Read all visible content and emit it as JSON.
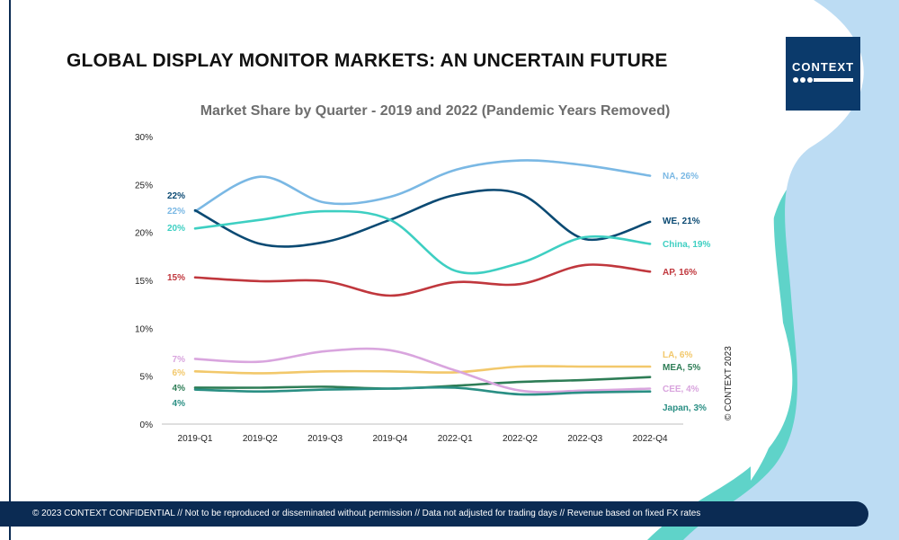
{
  "slide": {
    "title": "GLOBAL DISPLAY MONITOR MARKETS: AN UNCERTAIN FUTURE",
    "logo_text": "CONTEXT",
    "copyright_vertical": "© CONTEXT 2023",
    "footer": "© 2023 CONTEXT CONFIDENTIAL // Not to be reproduced or disseminated without permission // Data not adjusted for trading days // Revenue based on fixed FX rates"
  },
  "colors": {
    "navy": "#0b2b53",
    "light_blue_deco": "#bcdcf3",
    "teal_deco": "#5fd3c9"
  },
  "chart_data": {
    "type": "line",
    "title": "Market Share by Quarter - 2019 and 2022 (Pandemic Years Removed)",
    "xlabel": "",
    "ylabel": "",
    "categories": [
      "2019-Q1",
      "2019-Q2",
      "2019-Q3",
      "2019-Q4",
      "2022-Q1",
      "2022-Q2",
      "2022-Q3",
      "2022-Q4"
    ],
    "ylim": [
      0,
      30
    ],
    "yticks": [
      "0%",
      "5%",
      "10%",
      "15%",
      "20%",
      "25%",
      "30%"
    ],
    "grid": false,
    "series": [
      {
        "name": "NA",
        "color": "#7ab8e4",
        "values": [
          22.2,
          25.8,
          23.1,
          23.7,
          26.5,
          27.5,
          27.0,
          25.9
        ],
        "start_label": "22%",
        "end_label": "NA, 26%"
      },
      {
        "name": "WE",
        "color": "#0b4a73",
        "values": [
          22.3,
          18.8,
          19.0,
          21.3,
          23.9,
          24.0,
          19.3,
          21.1
        ],
        "start_label": "22%",
        "end_label": "WE, 21%"
      },
      {
        "name": "China",
        "color": "#3ecfc2",
        "values": [
          20.4,
          21.3,
          22.2,
          21.3,
          16.0,
          16.8,
          19.5,
          18.8
        ],
        "start_label": "20%",
        "end_label": "China, 19%"
      },
      {
        "name": "AP",
        "color": "#c0373d",
        "values": [
          15.3,
          14.9,
          14.9,
          13.4,
          14.8,
          14.6,
          16.6,
          15.9
        ],
        "start_label": "15%",
        "end_label": "AP, 16%"
      },
      {
        "name": "LA",
        "color": "#f2c86b",
        "values": [
          5.5,
          5.3,
          5.5,
          5.5,
          5.4,
          6.0,
          6.0,
          6.0
        ],
        "start_label": "6%",
        "end_label": "LA, 6%"
      },
      {
        "name": "MEA",
        "color": "#2e7d56",
        "values": [
          3.8,
          3.8,
          3.9,
          3.7,
          4.0,
          4.4,
          4.6,
          4.9
        ],
        "start_label": "4%",
        "end_label": "MEA, 5%"
      },
      {
        "name": "CEE",
        "color": "#d9a5de",
        "values": [
          6.8,
          6.5,
          7.6,
          7.7,
          5.6,
          3.5,
          3.5,
          3.7
        ],
        "start_label": "7%",
        "end_label": "CEE, 4%"
      },
      {
        "name": "Japan",
        "color": "#2a8f84",
        "values": [
          3.6,
          3.4,
          3.6,
          3.7,
          3.8,
          3.1,
          3.3,
          3.4
        ],
        "start_label": "4%",
        "end_label": "Japan, 3%"
      }
    ]
  }
}
